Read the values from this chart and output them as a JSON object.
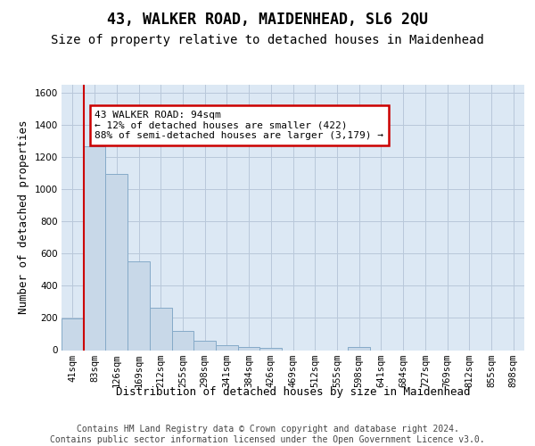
{
  "title": "43, WALKER ROAD, MAIDENHEAD, SL6 2QU",
  "subtitle": "Size of property relative to detached houses in Maidenhead",
  "xlabel": "Distribution of detached houses by size in Maidenhead",
  "ylabel": "Number of detached properties",
  "footer_line1": "Contains HM Land Registry data © Crown copyright and database right 2024.",
  "footer_line2": "Contains public sector information licensed under the Open Government Licence v3.0.",
  "bar_labels": [
    "41sqm",
    "83sqm",
    "126sqm",
    "169sqm",
    "212sqm",
    "255sqm",
    "298sqm",
    "341sqm",
    "384sqm",
    "426sqm",
    "469sqm",
    "512sqm",
    "555sqm",
    "598sqm",
    "641sqm",
    "684sqm",
    "727sqm",
    "769sqm",
    "812sqm",
    "855sqm",
    "898sqm"
  ],
  "bar_values": [
    196,
    1268,
    1097,
    554,
    265,
    119,
    57,
    32,
    21,
    13,
    0,
    0,
    0,
    19,
    0,
    0,
    0,
    0,
    0,
    0,
    0
  ],
  "bar_color": "#c8d8e8",
  "bar_edge_color": "#85aac8",
  "annotation_lines": [
    "43 WALKER ROAD: 94sqm",
    "← 12% of detached houses are smaller (422)",
    "88% of semi-detached houses are larger (3,179) →"
  ],
  "annotation_box_bg": "#ffffff",
  "annotation_box_edge": "#cc0000",
  "vline_color": "#cc0000",
  "vline_x": 0.5,
  "ylim_max": 1650,
  "yticks": [
    0,
    200,
    400,
    600,
    800,
    1000,
    1200,
    1400,
    1600
  ],
  "grid_color": "#b8c8da",
  "bg_color": "#dce8f4",
  "title_fontsize": 12,
  "subtitle_fontsize": 10,
  "ylabel_fontsize": 9,
  "xlabel_fontsize": 9,
  "tick_fontsize": 7.5,
  "ann_fontsize": 8,
  "footer_fontsize": 7
}
